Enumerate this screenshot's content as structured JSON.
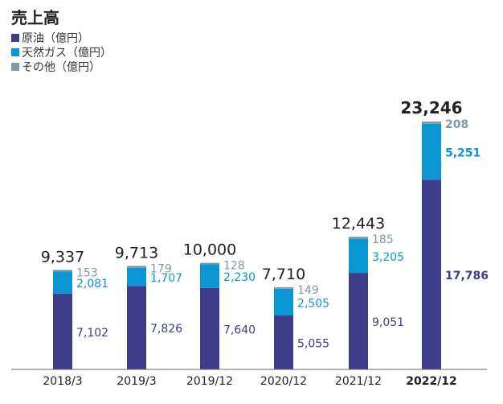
{
  "title": "売上高",
  "legend": [
    {
      "label": "原油（億円）",
      "color": "#3f3c8c"
    },
    {
      "label": "天然ガス（億円）",
      "color": "#0a96d2"
    },
    {
      "label": "その他（億円）",
      "color": "#7f9aa6"
    }
  ],
  "chart_data": {
    "type": "bar",
    "stacked": true,
    "title": "売上高",
    "categories": [
      "2018/3",
      "2019/3",
      "2019/12",
      "2020/12",
      "2021/12",
      "2022/12"
    ],
    "highlighted_category": "2022/12",
    "series": [
      {
        "name": "原油（億円）",
        "color": "#3f3c8c",
        "values": [
          7102,
          7826,
          7640,
          5055,
          9051,
          17786
        ]
      },
      {
        "name": "天然ガス（億円）",
        "color": "#0a96d2",
        "values": [
          2081,
          1707,
          2230,
          2505,
          3205,
          5251
        ]
      },
      {
        "name": "その他（億円）",
        "color": "#7f9aa6",
        "values": [
          153,
          179,
          128,
          149,
          185,
          208
        ]
      }
    ],
    "value_labels": [
      [
        "7,102",
        "7,826",
        "7,640",
        "5,055",
        "9,051",
        "17,786"
      ],
      [
        "2,081",
        "1,707",
        "2,230",
        "2,505",
        "3,205",
        "5,251"
      ],
      [
        "153",
        "179",
        "128",
        "149",
        "185",
        "208"
      ]
    ],
    "totals": [
      9337,
      9713,
      10000,
      7710,
      12443,
      23246
    ],
    "total_labels": [
      "9,337",
      "9,713",
      "10,000",
      "7,710",
      "12,443",
      "23,246"
    ],
    "ylim": [
      0,
      23246
    ],
    "grid": false,
    "legend_position": "top-left"
  }
}
